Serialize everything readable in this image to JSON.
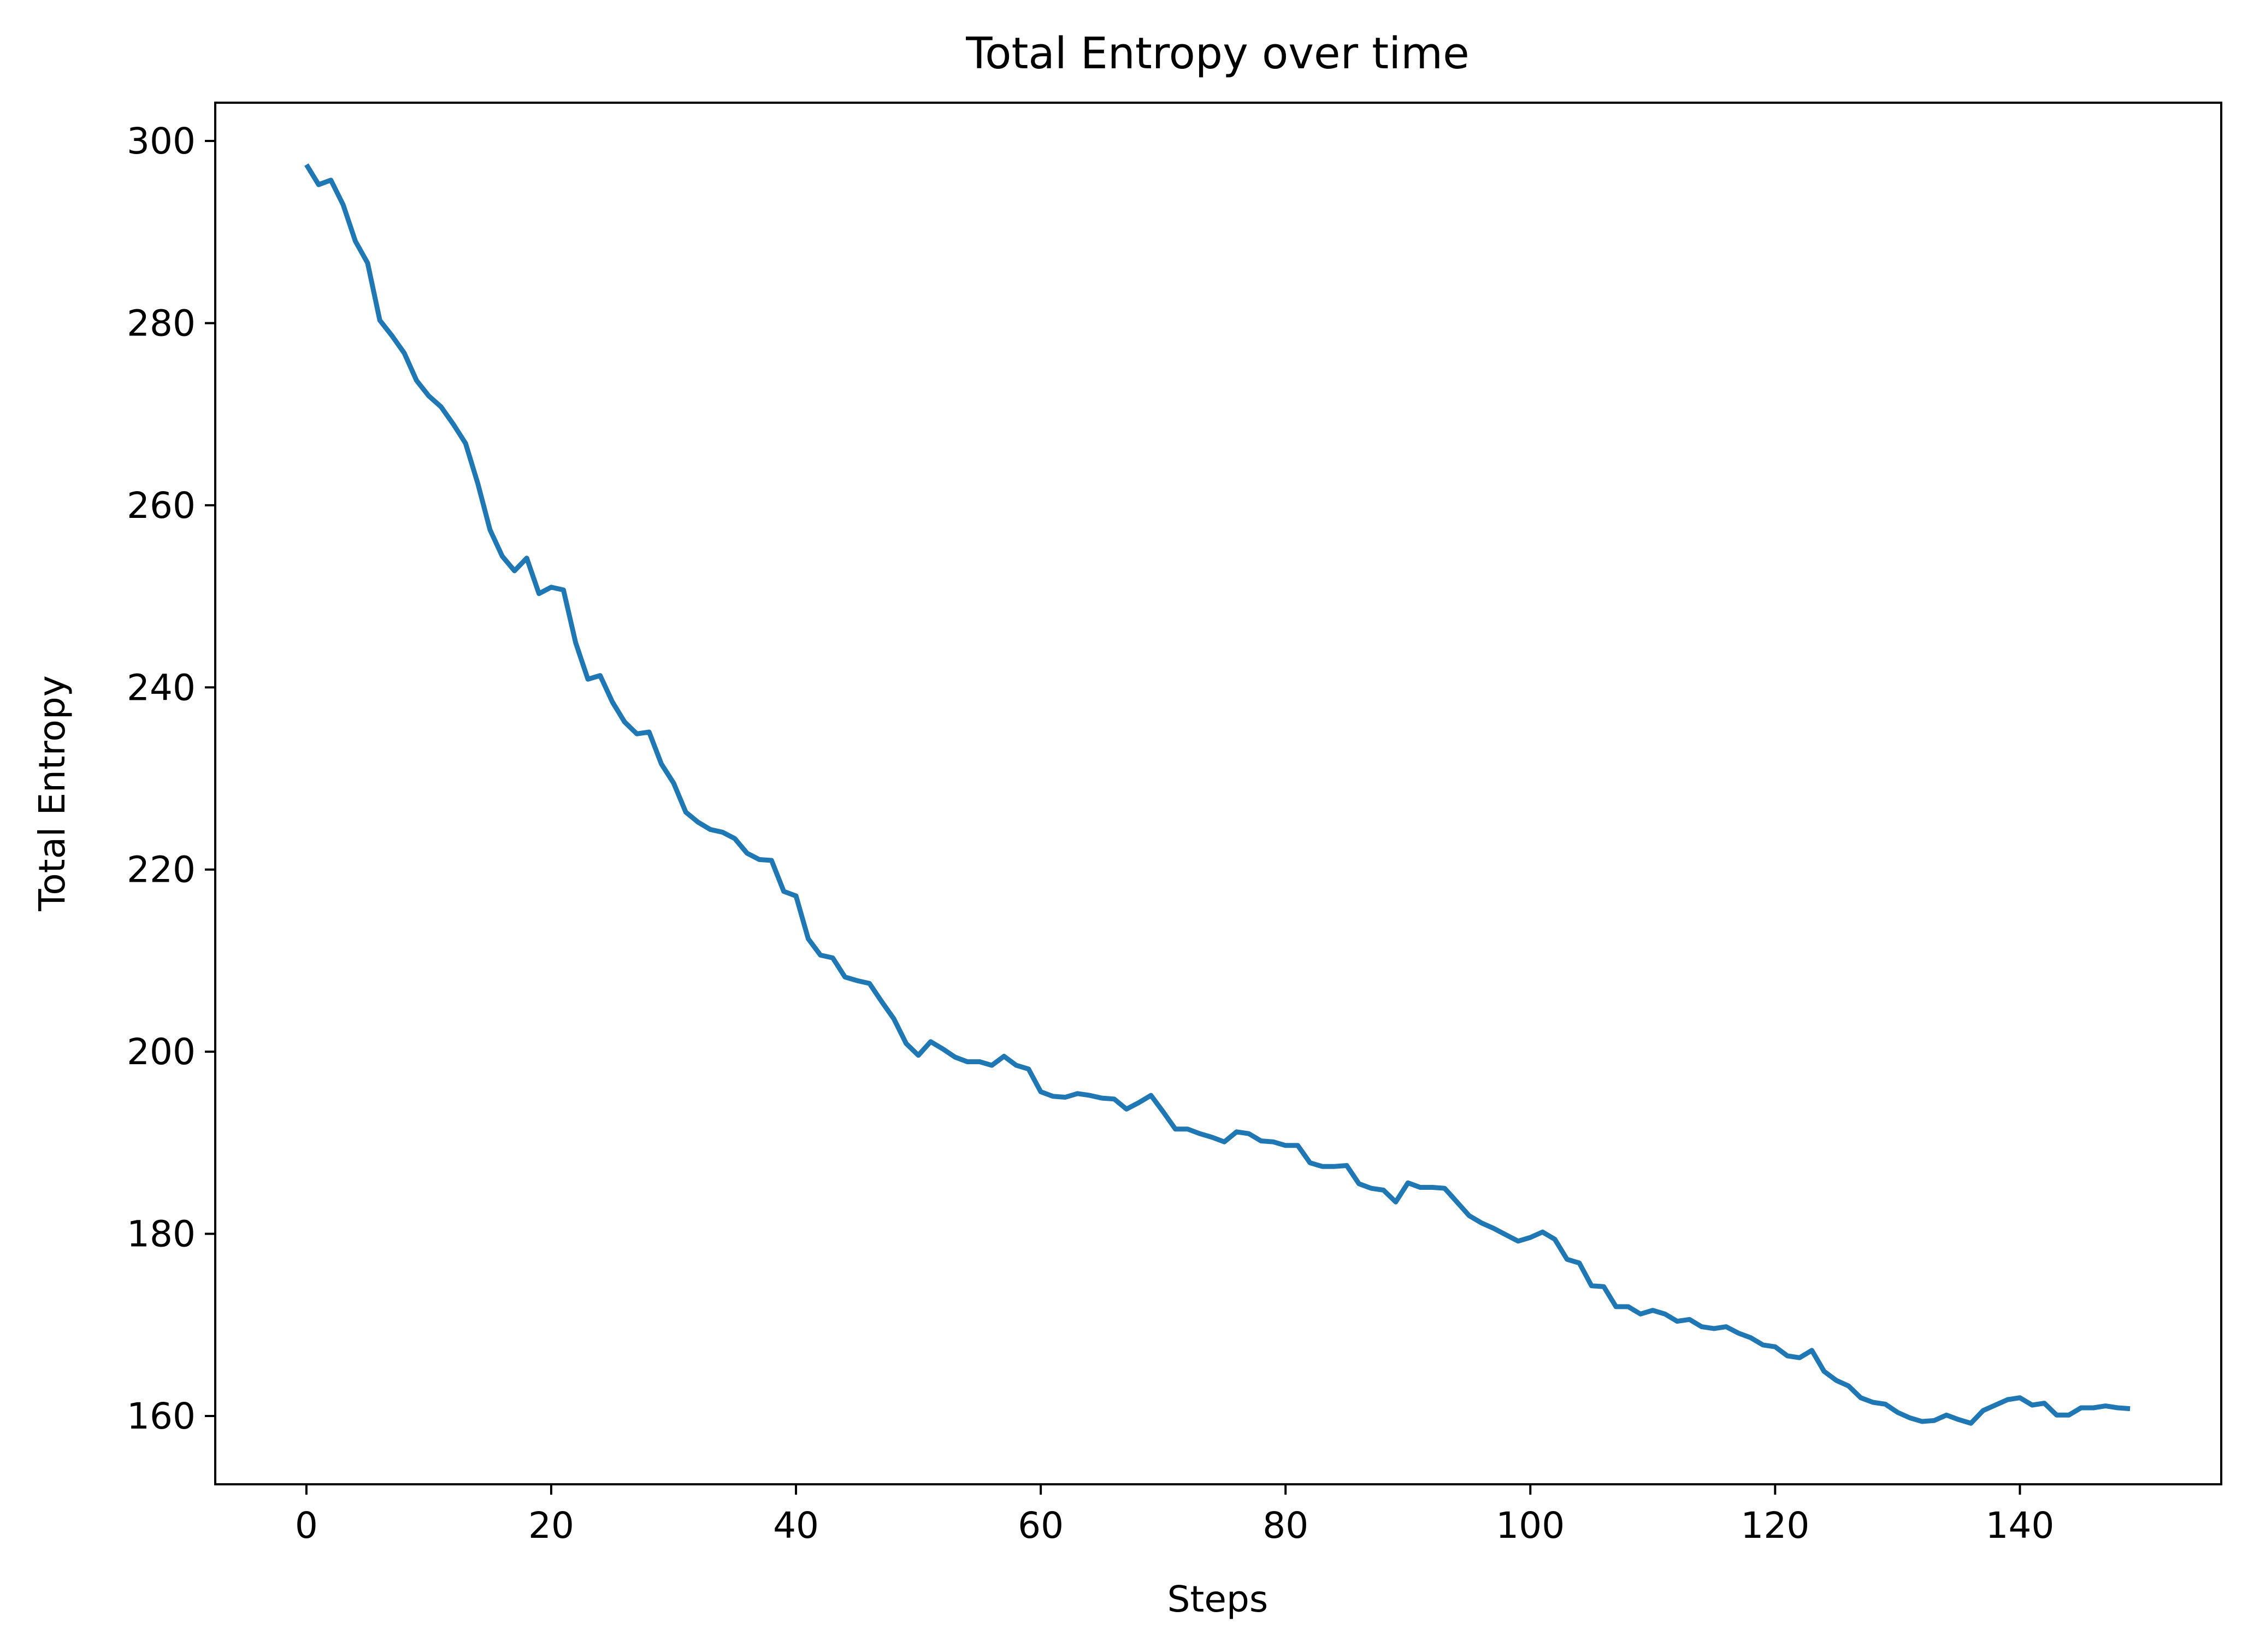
{
  "chart_data": {
    "type": "line",
    "title": "Total Entropy over time",
    "xlabel": "Steps",
    "ylabel": "Total Entropy",
    "xlim": [
      -7.45,
      156.45
    ],
    "ylim": [
      152.5,
      304.2
    ],
    "x_ticks": [
      0,
      20,
      40,
      60,
      80,
      100,
      120,
      140
    ],
    "y_ticks": [
      160,
      180,
      200,
      220,
      240,
      260,
      280,
      300
    ],
    "grid": false,
    "legend": "none",
    "series": [
      {
        "color": "#1f77b4",
        "x": [
          0,
          1,
          2,
          3,
          4,
          5,
          6,
          7,
          8,
          9,
          10,
          11,
          12,
          13,
          14,
          15,
          16,
          17,
          18,
          19,
          20,
          21,
          22,
          23,
          24,
          25,
          26,
          27,
          28,
          29,
          30,
          31,
          32,
          33,
          34,
          35,
          36,
          37,
          38,
          39,
          40,
          41,
          42,
          43,
          44,
          45,
          46,
          47,
          48,
          49,
          50,
          51,
          52,
          53,
          54,
          55,
          56,
          57,
          58,
          59,
          60,
          61,
          62,
          63,
          64,
          65,
          66,
          67,
          68,
          69,
          70,
          71,
          72,
          73,
          74,
          75,
          76,
          77,
          78,
          79,
          80,
          81,
          82,
          83,
          84,
          85,
          86,
          87,
          88,
          89,
          90,
          91,
          92,
          93,
          94,
          95,
          96,
          97,
          98,
          99,
          100,
          101,
          102,
          103,
          104,
          105,
          106,
          107,
          108,
          109,
          110,
          111,
          112,
          113,
          114,
          115,
          116,
          117,
          118,
          119,
          120,
          121,
          122,
          123,
          124,
          125,
          126,
          127,
          128,
          129,
          130,
          131,
          132,
          133,
          134,
          135,
          136,
          137,
          138,
          139,
          140,
          141,
          142,
          143,
          144,
          145,
          146,
          147,
          148,
          149
        ],
        "y": [
          297.4,
          295.2,
          295.7,
          293.0,
          289.0,
          286.6,
          280.3,
          278.6,
          276.7,
          273.7,
          272.0,
          270.8,
          268.9,
          266.8,
          262.4,
          257.3,
          254.4,
          252.8,
          254.2,
          250.3,
          251.0,
          250.7,
          244.9,
          240.9,
          241.3,
          238.4,
          236.2,
          234.9,
          235.1,
          231.6,
          229.5,
          226.3,
          225.2,
          224.4,
          224.1,
          223.4,
          221.8,
          221.1,
          221.0,
          217.6,
          217.1,
          212.4,
          210.6,
          210.3,
          208.2,
          207.8,
          207.5,
          205.5,
          203.6,
          200.9,
          199.6,
          201.1,
          200.3,
          199.4,
          198.9,
          198.9,
          198.5,
          199.5,
          198.5,
          198.1,
          195.6,
          195.1,
          195.0,
          195.4,
          195.2,
          194.9,
          194.8,
          193.7,
          194.4,
          195.2,
          193.4,
          191.5,
          191.5,
          191.0,
          190.6,
          190.1,
          191.2,
          191.0,
          190.2,
          190.1,
          189.7,
          189.7,
          187.8,
          187.4,
          187.4,
          187.5,
          185.5,
          185.0,
          184.8,
          183.5,
          185.6,
          185.1,
          185.1,
          185.0,
          183.5,
          182.0,
          181.2,
          180.6,
          179.9,
          179.2,
          179.6,
          180.2,
          179.4,
          177.2,
          176.8,
          174.3,
          174.2,
          172.0,
          172.0,
          171.2,
          171.6,
          171.2,
          170.4,
          170.6,
          169.8,
          169.6,
          169.8,
          169.1,
          168.6,
          167.8,
          167.6,
          166.6,
          166.4,
          167.2,
          164.9,
          163.9,
          163.3,
          162.0,
          161.5,
          161.3,
          160.4,
          159.8,
          159.4,
          159.5,
          160.1,
          159.6,
          159.2,
          160.6,
          161.2,
          161.8,
          162.0,
          161.2,
          161.4,
          160.1,
          160.1,
          160.9,
          160.9,
          161.1,
          160.9,
          160.8
        ]
      }
    ]
  }
}
